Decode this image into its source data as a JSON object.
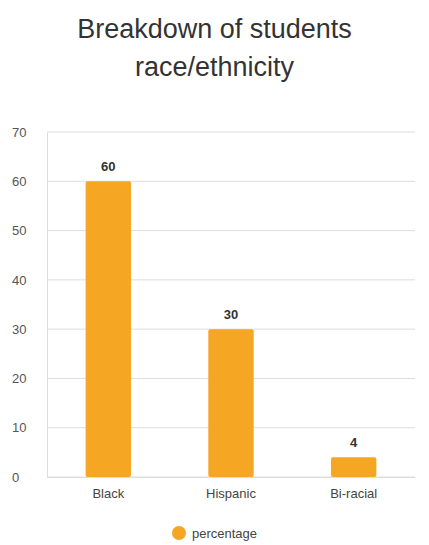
{
  "chart_data": {
    "type": "bar",
    "title": "Breakdown of students race/ethnicity",
    "categories": [
      "Black",
      "Hispanic",
      "Bi-racial"
    ],
    "series": [
      {
        "name": "percentage",
        "color": "#f5a623",
        "values": [
          60,
          30,
          4
        ]
      }
    ],
    "ylim": [
      0,
      70
    ],
    "yticks": [
      0,
      10,
      20,
      30,
      40,
      50,
      60,
      70
    ],
    "grid": true,
    "data_labels": true,
    "legend": "bottom"
  }
}
